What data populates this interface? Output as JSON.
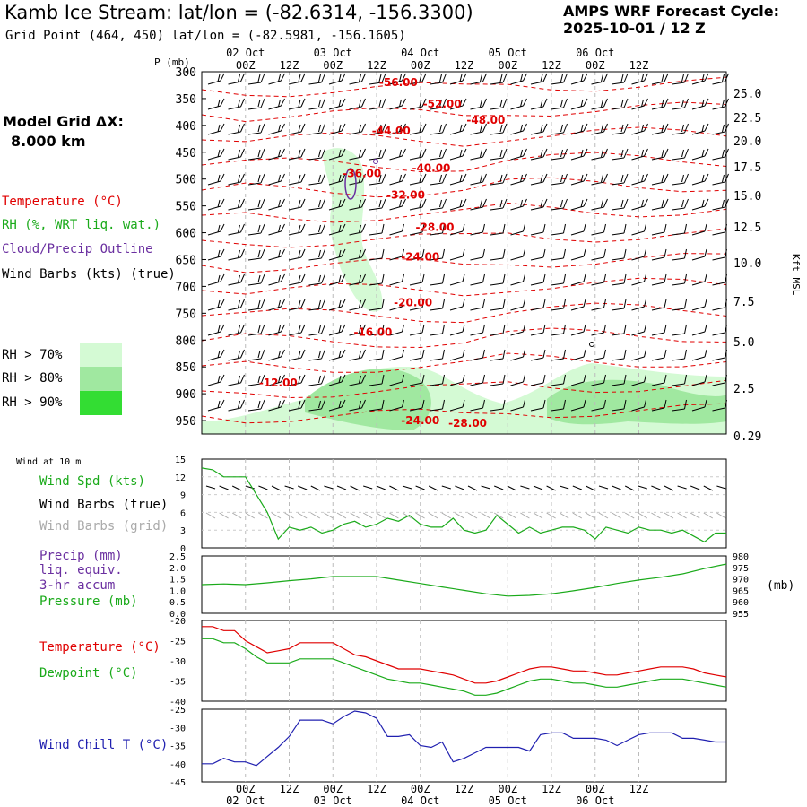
{
  "header": {
    "title": "Kamb Ice Stream:  lat/lon = (-82.6314, -156.3300)",
    "subtitle": "Grid Point (464, 450) lat/lon = (-82.5981, -156.1605)",
    "cycle_title": "AMPS WRF Forecast Cycle:",
    "cycle_value": "2025-10-01 / 12  Z",
    "grid_label": "Model Grid ΔX:",
    "grid_value": "8.000 km"
  },
  "legend": {
    "temperature": "Temperature (°C)",
    "rh": "RH (%, WRT liq. wat.)",
    "cloud": "Cloud/Precip Outline",
    "wind_barbs": "Wind Barbs (kts) (true)",
    "rh70": "RH > 70%",
    "rh80": "RH > 80%",
    "rh90": "RH > 90%",
    "wind10m": "Wind at 10 m",
    "wind_spd": "Wind Spd (kts)",
    "barbs_true": "Wind Barbs (true)",
    "barbs_grid": "Wind Barbs (grid)",
    "precip1": "Precip (mm)",
    "precip2": "liq. equiv.",
    "precip3": "3-hr accum",
    "pressure": "Pressure (mb)",
    "t2": "Temperature (°C)",
    "dewpoint": "Dewpoint (°C)",
    "windchill": "Wind Chill T (°C)"
  },
  "colors": {
    "temperature": "#e00000",
    "rh": "#1aaa1a",
    "cloud": "#6a2fa0",
    "windchill": "#2020b0",
    "grid_barbs": "#aaaaaa",
    "rh70": "#d4fad4",
    "rh80": "#a0e8a0",
    "rh90": "#33dd33"
  },
  "chart_data": [
    {
      "type": "heatmap",
      "panel": "vertical cross-section (time-height)",
      "y_axis_title": "P (mb)",
      "y_ticks": [
        "300",
        "350",
        "400",
        "450",
        "500",
        "550",
        "600",
        "650",
        "700",
        "750",
        "800",
        "850",
        "900",
        "950"
      ],
      "right_ticks": [
        "25.0",
        "22.5",
        "20.0",
        "17.5",
        "15.0",
        "12.5",
        "10.0",
        "7.5",
        "5.0",
        "2.5",
        "0.29"
      ],
      "right_label": "Kft MSL",
      "x_ticks_top": [
        "00Z",
        "12Z",
        "00Z",
        "12Z",
        "00Z",
        "12Z",
        "00Z",
        "12Z",
        "00Z",
        "12Z"
      ],
      "date_labels_top": [
        "02 Oct",
        "03 Oct",
        "04 Oct",
        "05 Oct",
        "06 Oct"
      ],
      "isotherm_labels": [
        {
          "text": "-56.00",
          "pressure": 320,
          "hours": 54
        },
        {
          "text": "-52.00",
          "pressure": 360,
          "hours": 66
        },
        {
          "text": "-48.00",
          "pressure": 390,
          "hours": 78
        },
        {
          "text": "-44.00",
          "pressure": 410,
          "hours": 52
        },
        {
          "text": "-40.00",
          "pressure": 480,
          "hours": 63
        },
        {
          "text": "-36.00",
          "pressure": 490,
          "hours": 44
        },
        {
          "text": "-32.00",
          "pressure": 530,
          "hours": 56
        },
        {
          "text": "-28.00",
          "pressure": 590,
          "hours": 64
        },
        {
          "text": "-24.00",
          "pressure": 645,
          "hours": 60
        },
        {
          "text": "-20.00",
          "pressure": 730,
          "hours": 58
        },
        {
          "text": "-16.00",
          "pressure": 785,
          "hours": 47
        },
        {
          "text": "-12.00",
          "pressure": 880,
          "hours": 21
        },
        {
          "text": "-24.00",
          "pressure": 950,
          "hours": 60
        },
        {
          "text": "-28.00",
          "pressure": 955,
          "hours": 73
        }
      ]
    },
    {
      "type": "line",
      "panel": "10 m wind",
      "ylim": [
        0,
        15
      ],
      "y_ticks": [
        "0",
        "3",
        "6",
        "9",
        "12",
        "15"
      ],
      "series": [
        {
          "name": "Wind Spd (kts)",
          "x": [
            0,
            3,
            6,
            9,
            12,
            15,
            18,
            21,
            24,
            27,
            30,
            33,
            36,
            39,
            42,
            45,
            48,
            51,
            54,
            57,
            60,
            63,
            66,
            69,
            72,
            75,
            78,
            81,
            84,
            87,
            90,
            93,
            96,
            99,
            102,
            105,
            108,
            111,
            114,
            117,
            120,
            123,
            126,
            129,
            132,
            135,
            138,
            141,
            144
          ],
          "values": [
            13.5,
            13.2,
            12.0,
            12.0,
            12.0,
            9.0,
            6.0,
            1.5,
            3.5,
            3.0,
            3.5,
            2.5,
            3.0,
            4.0,
            4.5,
            3.5,
            4.0,
            5.0,
            4.5,
            5.5,
            4.0,
            3.5,
            3.5,
            5.0,
            3.0,
            2.5,
            3.0,
            5.5,
            4.0,
            2.5,
            3.5,
            2.5,
            3.0,
            3.5,
            3.5,
            3.0,
            1.5,
            3.5,
            3.0,
            2.5,
            3.5,
            3.0,
            3.0,
            2.5,
            3.0,
            2.0,
            1.0,
            2.5,
            2.5
          ]
        }
      ]
    },
    {
      "type": "line",
      "panel": "precip / pressure",
      "ylim_left": [
        0,
        2.5
      ],
      "left_ticks": [
        "0.0",
        "0.5",
        "1.0",
        "1.5",
        "2.0",
        "2.5"
      ],
      "ylim_right": [
        955,
        980
      ],
      "right_ticks": [
        "980",
        "975",
        "970",
        "965",
        "960",
        "955"
      ],
      "right_unit": "(mb)",
      "series": [
        {
          "name": "Pressure (mb)",
          "x": [
            0,
            6,
            12,
            18,
            24,
            30,
            36,
            42,
            48,
            54,
            60,
            66,
            72,
            78,
            84,
            90,
            96,
            102,
            108,
            114,
            120,
            126,
            132,
            138,
            144
          ],
          "values": [
            967.5,
            967.8,
            967.5,
            968.3,
            969.2,
            970.0,
            971.0,
            971.0,
            971.0,
            969.5,
            968.0,
            966.5,
            965.0,
            963.5,
            962.5,
            962.8,
            963.5,
            964.8,
            966.3,
            968.0,
            969.5,
            970.7,
            972.2,
            974.5,
            976.5
          ]
        }
      ]
    },
    {
      "type": "line",
      "panel": "temperature / dewpoint",
      "ylim": [
        -40,
        -20
      ],
      "y_ticks": [
        "-20",
        "-25",
        "-30",
        "-35",
        "-40"
      ],
      "series": [
        {
          "name": "Temperature (°C)",
          "x": [
            0,
            3,
            6,
            9,
            12,
            15,
            18,
            21,
            24,
            27,
            30,
            33,
            36,
            39,
            42,
            45,
            48,
            51,
            54,
            57,
            60,
            63,
            66,
            69,
            72,
            75,
            78,
            81,
            84,
            87,
            90,
            93,
            96,
            99,
            102,
            105,
            108,
            111,
            114,
            117,
            120,
            123,
            126,
            129,
            132,
            135,
            138,
            141,
            144
          ],
          "values": [
            -21.5,
            -21.5,
            -22.5,
            -22.5,
            -25,
            -26.5,
            -28,
            -27.5,
            -27,
            -25.5,
            -25.5,
            -25.5,
            -25.5,
            -27,
            -28.5,
            -29,
            -30,
            -31,
            -32,
            -32,
            -32,
            -32.5,
            -33,
            -33.5,
            -34.5,
            -35.5,
            -35.5,
            -35,
            -34,
            -33,
            -32,
            -31.5,
            -31.5,
            -32,
            -32.5,
            -32.5,
            -33,
            -33.5,
            -33.5,
            -33,
            -32.5,
            -32,
            -31.5,
            -31.5,
            -31.5,
            -32,
            -33,
            -33.5,
            -34
          ]
        },
        {
          "name": "Dewpoint (°C)",
          "x": [
            0,
            3,
            6,
            9,
            12,
            15,
            18,
            21,
            24,
            27,
            30,
            33,
            36,
            39,
            42,
            45,
            48,
            51,
            54,
            57,
            60,
            63,
            66,
            69,
            72,
            75,
            78,
            81,
            84,
            87,
            90,
            93,
            96,
            99,
            102,
            105,
            108,
            111,
            114,
            117,
            120,
            123,
            126,
            129,
            132,
            135,
            138,
            141,
            144
          ],
          "values": [
            -24.5,
            -24.5,
            -25.5,
            -25.5,
            -27,
            -29,
            -30.5,
            -30.5,
            -30.5,
            -29.5,
            -29.5,
            -29.5,
            -29.5,
            -30.5,
            -31.5,
            -32.5,
            -33.5,
            -34.5,
            -35,
            -35.5,
            -35.5,
            -36,
            -36.5,
            -37,
            -37.5,
            -38.5,
            -38.5,
            -38,
            -37,
            -36,
            -35,
            -34.5,
            -34.5,
            -35,
            -35.5,
            -35.5,
            -36,
            -36.5,
            -36.5,
            -36,
            -35.5,
            -35,
            -34.5,
            -34.5,
            -34.5,
            -35,
            -35.5,
            -36,
            -36.5
          ]
        }
      ]
    },
    {
      "type": "line",
      "panel": "wind chill",
      "ylim": [
        -45,
        -25
      ],
      "y_ticks": [
        "-25",
        "-30",
        "-35",
        "-40",
        "-45"
      ],
      "x_ticks_bottom": [
        "00Z",
        "12Z",
        "00Z",
        "12Z",
        "00Z",
        "12Z",
        "00Z",
        "12Z",
        "00Z",
        "12Z"
      ],
      "date_labels_bottom": [
        "02 Oct",
        "03 Oct",
        "04 Oct",
        "05 Oct",
        "06 Oct"
      ],
      "series": [
        {
          "name": "Wind Chill T (°C)",
          "x": [
            0,
            3,
            6,
            9,
            12,
            15,
            18,
            21,
            24,
            27,
            30,
            33,
            36,
            39,
            42,
            45,
            48,
            51,
            54,
            57,
            60,
            63,
            66,
            69,
            72,
            75,
            78,
            81,
            84,
            87,
            90,
            93,
            96,
            99,
            102,
            105,
            108,
            111,
            114,
            117,
            120,
            123,
            126,
            129,
            132,
            135,
            138,
            141,
            144
          ],
          "values": [
            -40,
            -40,
            -38.5,
            -39.5,
            -39.5,
            -40.5,
            -38,
            -35.5,
            -32.5,
            -28,
            -28,
            -28,
            -29,
            -27,
            -25.5,
            -26,
            -27.5,
            -32.5,
            -32.5,
            -32,
            -35,
            -35.5,
            -34,
            -39.5,
            -38.5,
            -37,
            -35.5,
            -35.5,
            -35.5,
            -35.5,
            -36.5,
            -32,
            -31.5,
            -31.5,
            -33,
            -33,
            -33,
            -33.5,
            -35,
            -33.5,
            -32,
            -31.5,
            -31.5,
            -31.5,
            -33,
            -33,
            -33.5,
            -34,
            -34
          ]
        }
      ]
    }
  ]
}
